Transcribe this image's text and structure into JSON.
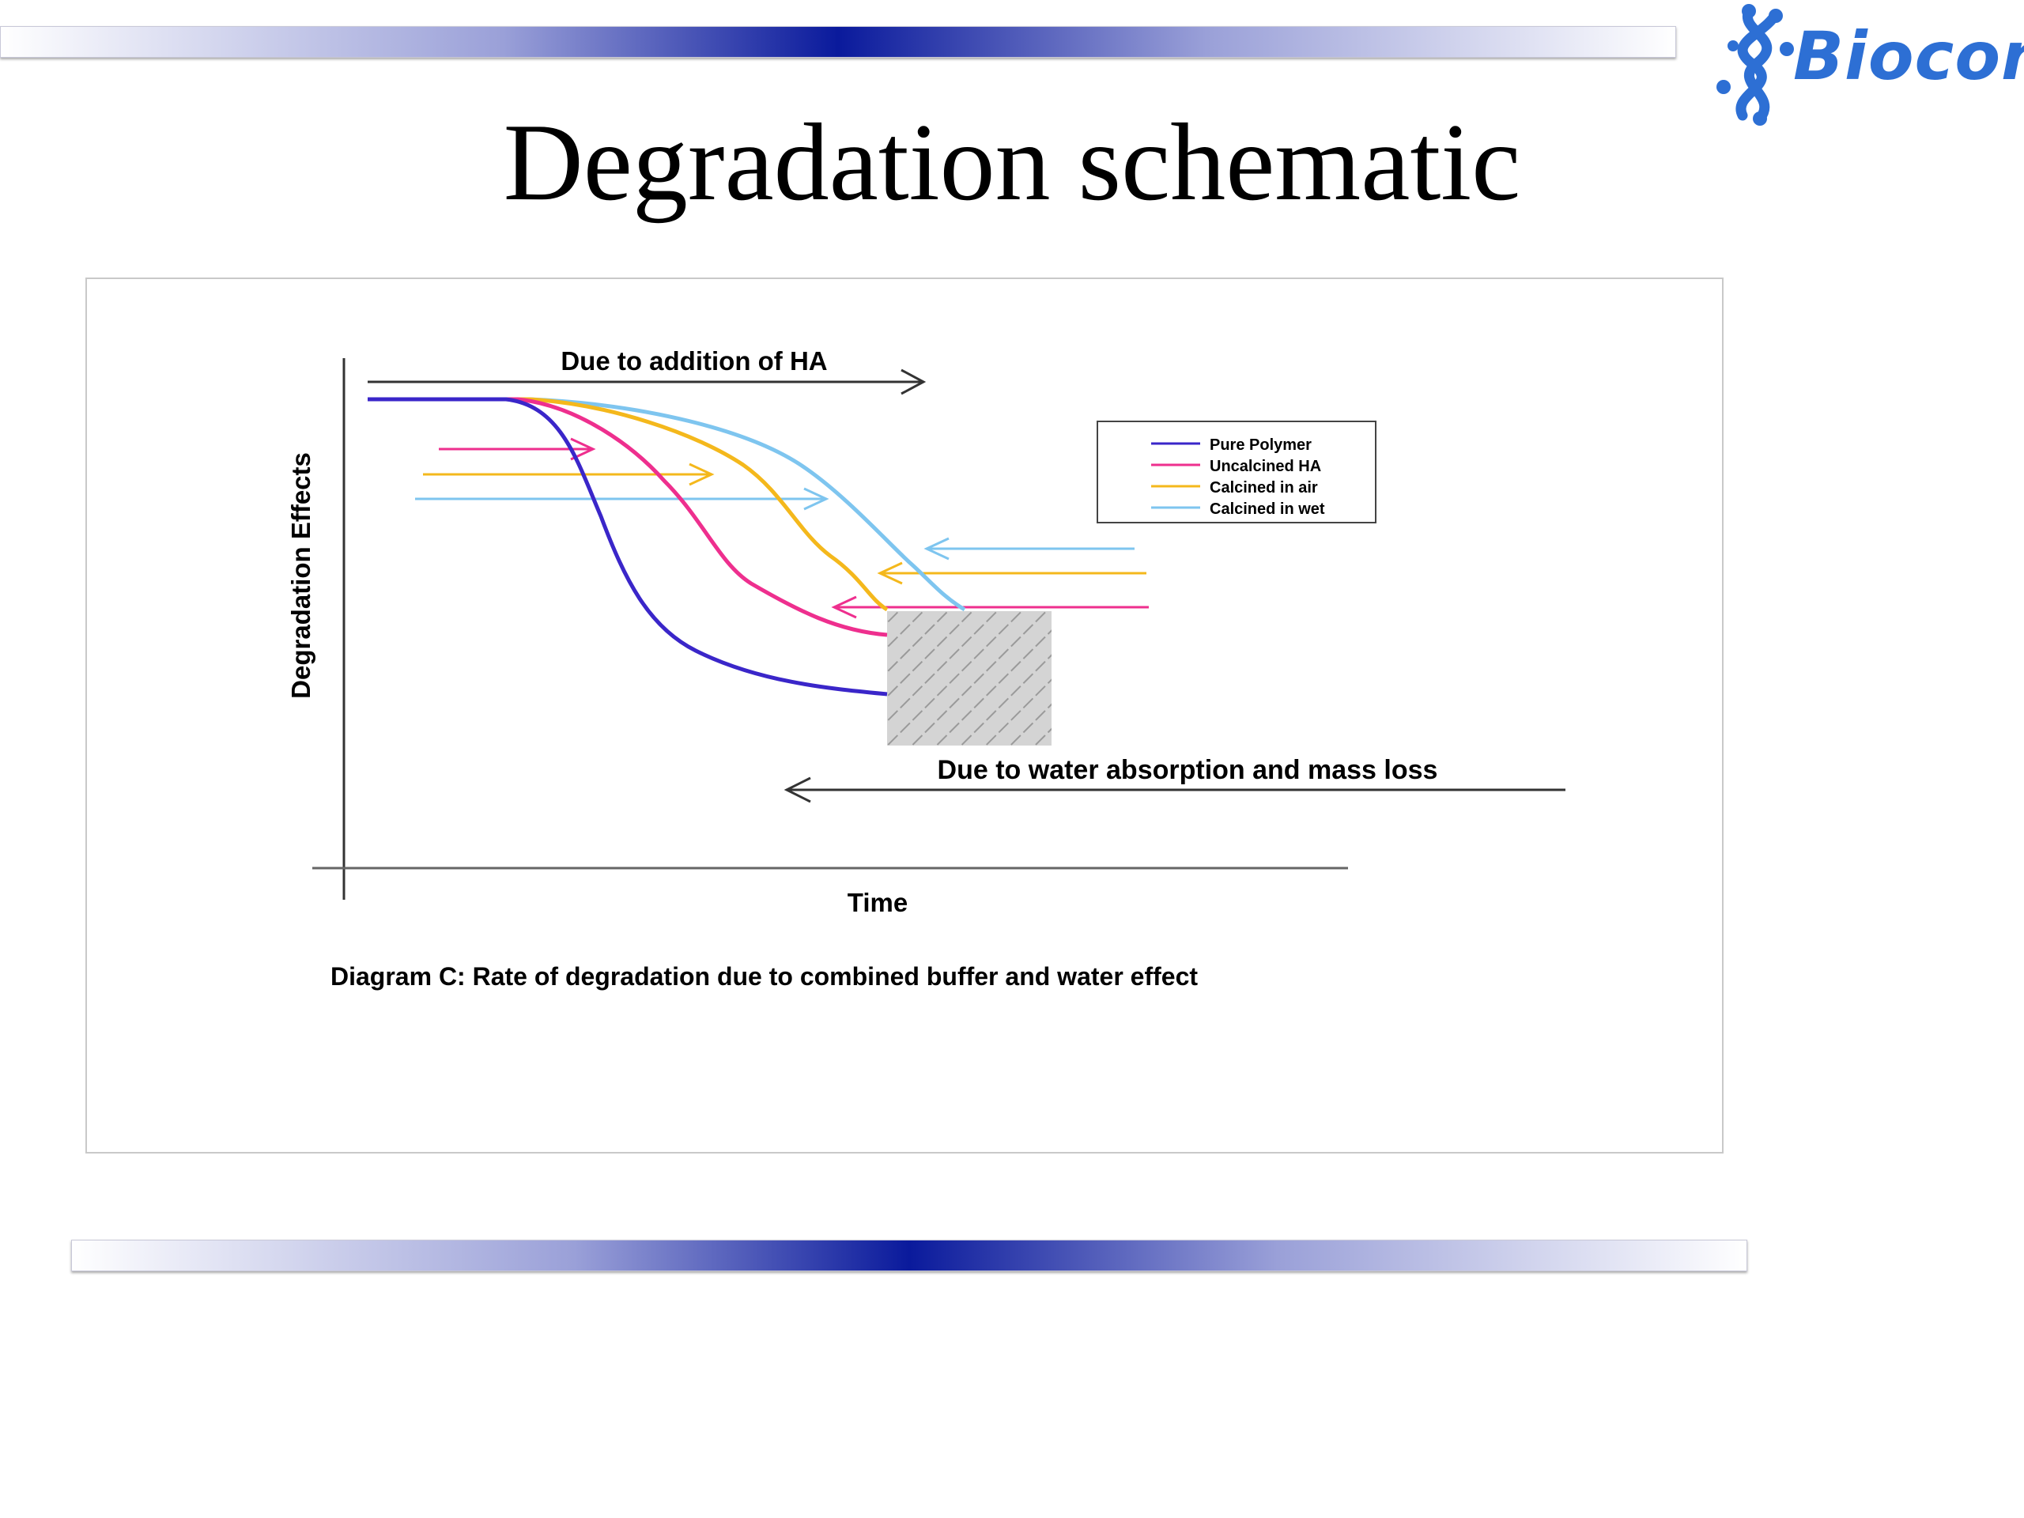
{
  "slide": {
    "title": "Degradation schematic",
    "logo_text": "Biocon"
  },
  "colors": {
    "pure_polymer": "#3a26c9",
    "uncalcined_ha": "#ee2f8e",
    "calcined_air": "#f4b81c",
    "calcined_wet": "#7ec5ef",
    "band_accent": "#0a1a9c",
    "logo": "#2d6fd4"
  },
  "diagram": {
    "top_arrow_label": "Due to addition of HA",
    "bottom_arrow_label": "Due to water absorption and mass loss",
    "y_axis_label": "Degradation Effects",
    "x_axis_label": "Time",
    "caption": "Diagram C: Rate of degradation due to combined buffer and water effect",
    "legend": [
      {
        "name": "Pure Polymer",
        "color": "#3a26c9"
      },
      {
        "name": "Uncalcined HA",
        "color": "#ee2f8e"
      },
      {
        "name": "Calcined in air",
        "color": "#f4b81c"
      },
      {
        "name": "Calcined in wet",
        "color": "#7ec5ef"
      }
    ]
  }
}
